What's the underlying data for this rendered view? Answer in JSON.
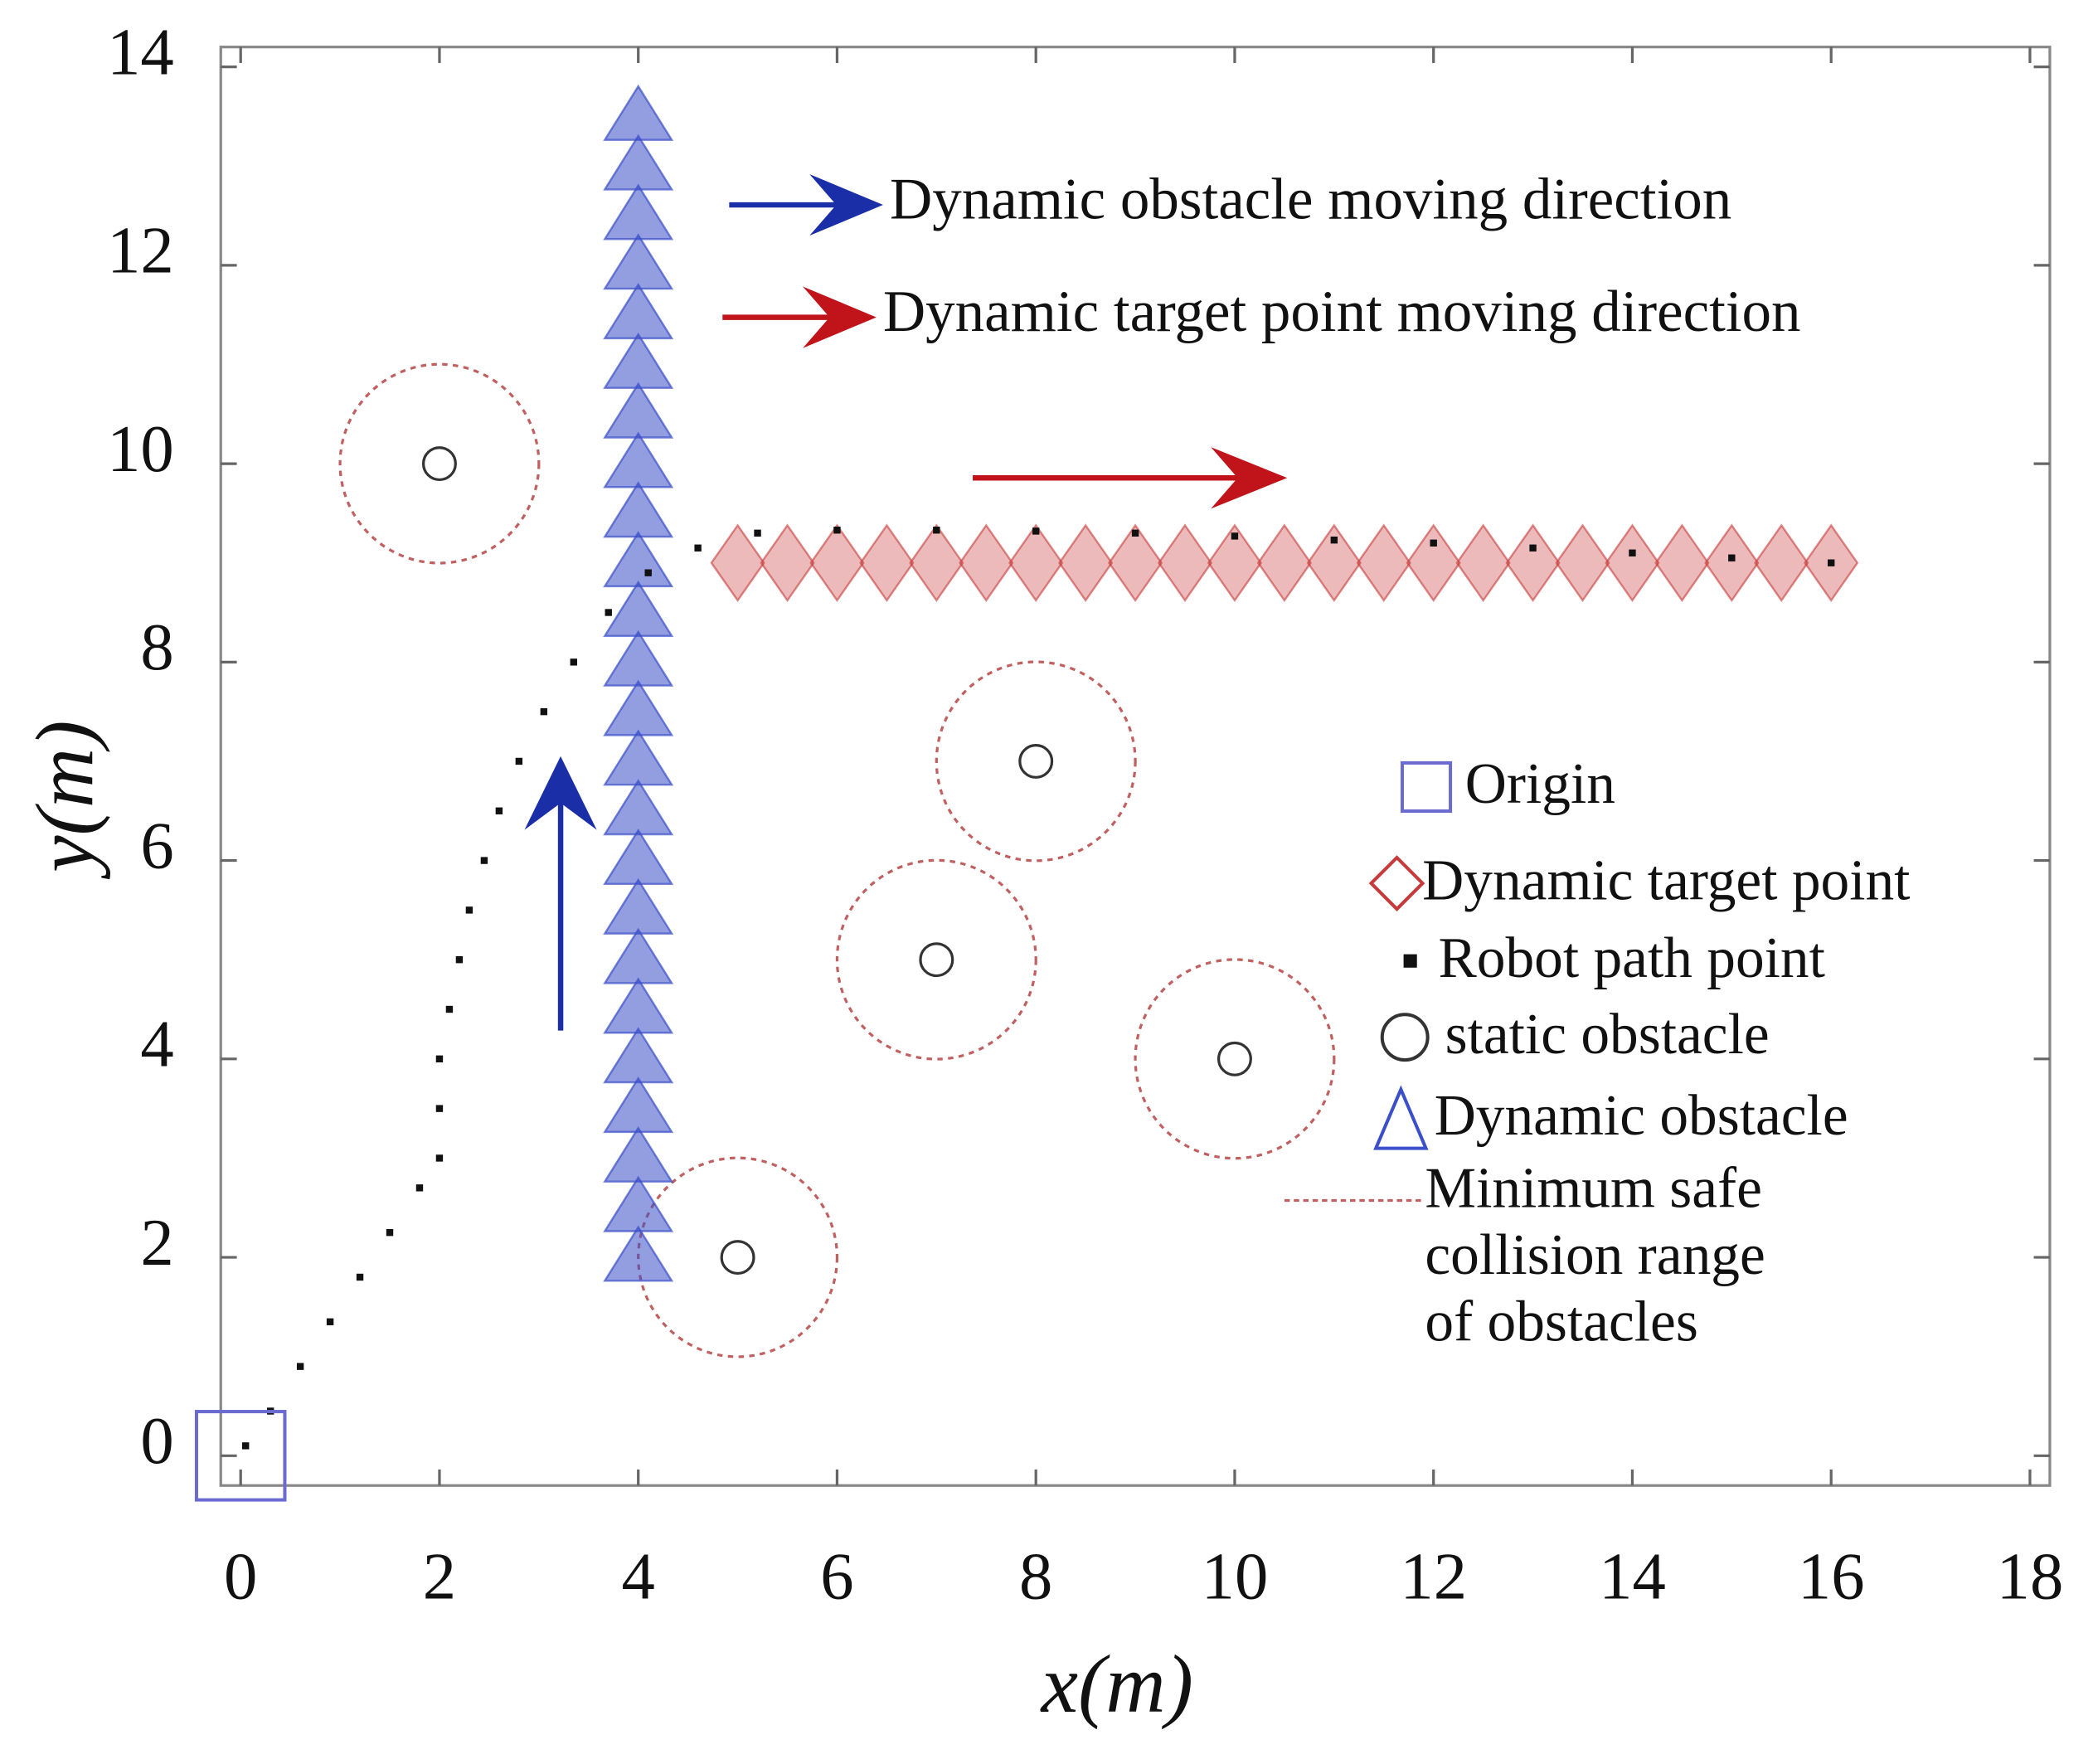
{
  "chart_data": {
    "type": "scatter",
    "xlabel": "x(m)",
    "ylabel": "y(m)",
    "xlim": [
      -0.2,
      18.2
    ],
    "ylim": [
      -0.3,
      14.2
    ],
    "xticks": [
      0,
      2,
      4,
      6,
      8,
      10,
      12,
      14,
      16,
      18
    ],
    "yticks": [
      0,
      2,
      4,
      6,
      8,
      10,
      12,
      14
    ],
    "series": [
      {
        "name": "Origin",
        "marker": "square",
        "color": "#6a6ad0",
        "x": [
          0
        ],
        "y": [
          0
        ]
      },
      {
        "name": "Dynamic target point",
        "marker": "diamond",
        "color": "#c83a3a",
        "x": [
          5,
          5.5,
          6,
          6.5,
          7,
          7.5,
          8,
          8.5,
          9,
          9.5,
          10,
          10.5,
          11,
          11.5,
          12,
          12.5,
          13,
          13.5,
          14,
          14.5,
          15,
          15.5,
          16
        ],
        "y": [
          9,
          9,
          9,
          9,
          9,
          9,
          9,
          9,
          9,
          9,
          9,
          9,
          9,
          9,
          9,
          9,
          9,
          9,
          9,
          9,
          9,
          9,
          9
        ]
      },
      {
        "name": "Robot path point",
        "marker": "point",
        "color": "#111111",
        "x": [
          0.05,
          0.3,
          0.6,
          0.9,
          1.2,
          1.5,
          1.8,
          2.0,
          2.0,
          2.0,
          2.1,
          2.2,
          2.3,
          2.45,
          2.6,
          2.8,
          3.05,
          3.35,
          3.7,
          4.1,
          4.6,
          5.2,
          6,
          7,
          8,
          9,
          10,
          11,
          12,
          13,
          14,
          15,
          16
        ],
        "y": [
          0.1,
          0.45,
          0.9,
          1.35,
          1.8,
          2.25,
          2.7,
          3.0,
          3.5,
          4.0,
          4.5,
          5.0,
          5.5,
          6.0,
          6.5,
          7.0,
          7.5,
          8.0,
          8.5,
          8.9,
          9.15,
          9.3,
          9.33,
          9.33,
          9.32,
          9.3,
          9.27,
          9.23,
          9.2,
          9.15,
          9.1,
          9.05,
          9.0
        ]
      },
      {
        "name": "static obstacle",
        "marker": "circle",
        "color": "#333333",
        "x": [
          2,
          8,
          7,
          10,
          5
        ],
        "y": [
          10,
          7,
          5,
          4,
          2
        ]
      },
      {
        "name": "Dynamic obstacle",
        "marker": "triangle",
        "color": "#3a4fc8",
        "x": [
          4,
          4,
          4,
          4,
          4,
          4,
          4,
          4,
          4,
          4,
          4,
          4,
          4,
          4,
          4,
          4,
          4,
          4,
          4,
          4,
          4,
          4,
          4,
          4
        ],
        "y": [
          2,
          2.5,
          3,
          3.5,
          4,
          4.5,
          5,
          5.5,
          6,
          6.5,
          7,
          7.5,
          8,
          8.5,
          9,
          9.5,
          10,
          10.5,
          11,
          11.5,
          12,
          12.5,
          13,
          13.5
        ]
      }
    ],
    "safe_range": {
      "name": [
        "Minimum safe",
        "collision range",
        "of obstacles"
      ],
      "radius": 1,
      "color": "#c06060"
    },
    "annotations": [
      {
        "text": "Dynamic obstacle moving direction",
        "color": "#1a2ea8"
      },
      {
        "text": "Dynamic target point moving direction",
        "color": "#c0141a"
      }
    ]
  }
}
